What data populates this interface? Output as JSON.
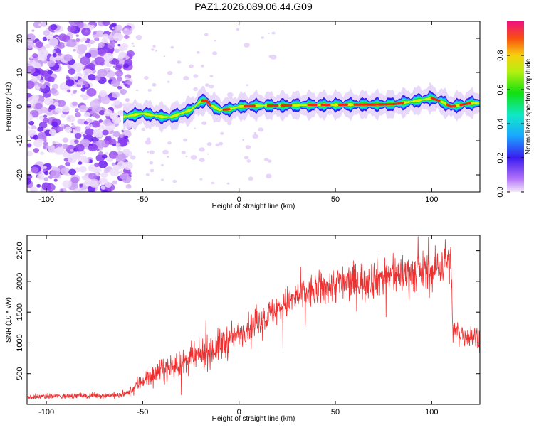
{
  "title": "PAZ1.2026.089.06.44.G09",
  "chart_data": [
    {
      "type": "heatmap",
      "xlabel": "Height of straight line (km)",
      "ylabel": "Frequency (Hz)",
      "xlim": [
        -110,
        125
      ],
      "ylim": [
        -25,
        25
      ],
      "xticks": [
        -100,
        -50,
        0,
        50,
        100
      ],
      "yticks": [
        -20,
        -10,
        0,
        10,
        20
      ],
      "colorbar": {
        "label": "Normalized spectral amplitude",
        "range": [
          0,
          1
        ],
        "ticks": [
          "0.0",
          "0.2",
          "0.4",
          "0.6",
          "0.8"
        ]
      },
      "ridge": {
        "x": [
          -60,
          -55,
          -50,
          -45,
          -40,
          -35,
          -30,
          -25,
          -20,
          -17,
          -15,
          -10,
          -5,
          0,
          10,
          20,
          30,
          40,
          50,
          60,
          70,
          80,
          90,
          95,
          100,
          105,
          110,
          115,
          120,
          125
        ],
        "y": [
          -3,
          -2.5,
          -2,
          -2.5,
          -3,
          -3,
          -2,
          -1,
          1.5,
          1.8,
          0.5,
          -1,
          -0.8,
          0,
          0.3,
          0.3,
          0.4,
          0.5,
          0.5,
          0.6,
          0.6,
          0.7,
          1.5,
          2,
          2.5,
          1.5,
          0,
          0.5,
          1,
          1
        ]
      },
      "noise_region": [
        -110,
        -60
      ]
    },
    {
      "type": "line",
      "xlabel": "Height of straight line (km)",
      "ylabel": "SNR (10 * v/v)",
      "xlim": [
        -110,
        125
      ],
      "ylim": [
        0,
        2750
      ],
      "xticks": [
        -100,
        -50,
        0,
        50,
        100
      ],
      "yticks": [
        500,
        1000,
        1500,
        2000,
        2500
      ],
      "color": "#ee3030",
      "trend": {
        "x": [
          -110,
          -100,
          -80,
          -60,
          -57,
          -50,
          -40,
          -30,
          -20,
          -10,
          0,
          10,
          20,
          30,
          40,
          50,
          60,
          70,
          80,
          90,
          100,
          108,
          110,
          111,
          115,
          120,
          125
        ],
        "y": [
          120,
          130,
          140,
          150,
          200,
          400,
          550,
          650,
          800,
          950,
          1150,
          1350,
          1550,
          1750,
          1850,
          1950,
          2000,
          2050,
          2100,
          2150,
          2150,
          2350,
          2250,
          1200,
          1150,
          1100,
          1100
        ]
      }
    }
  ]
}
